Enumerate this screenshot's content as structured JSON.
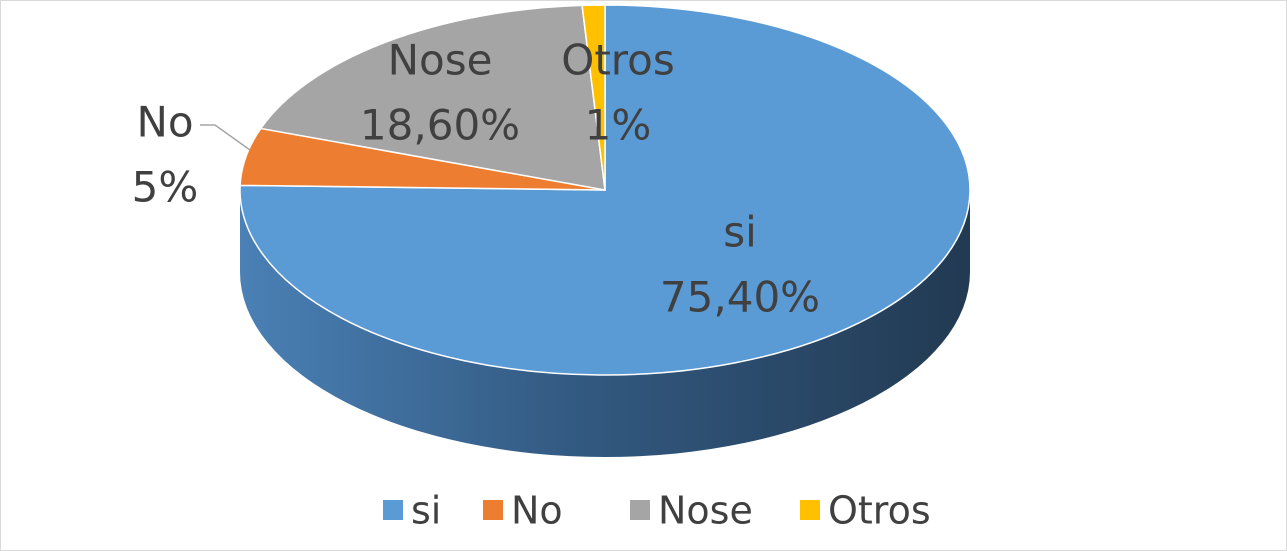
{
  "chart_data": {
    "type": "pie3d",
    "categories": [
      "si",
      "No",
      "Nose",
      "Otros"
    ],
    "values": [
      75.4,
      5,
      18.6,
      1
    ],
    "value_labels": [
      "75,40%",
      "5%",
      "18,60%",
      "1%"
    ],
    "colors": [
      "#5b9bd5",
      "#ed7d31",
      "#a5a5a5",
      "#ffc000"
    ],
    "legend": "bottom"
  }
}
